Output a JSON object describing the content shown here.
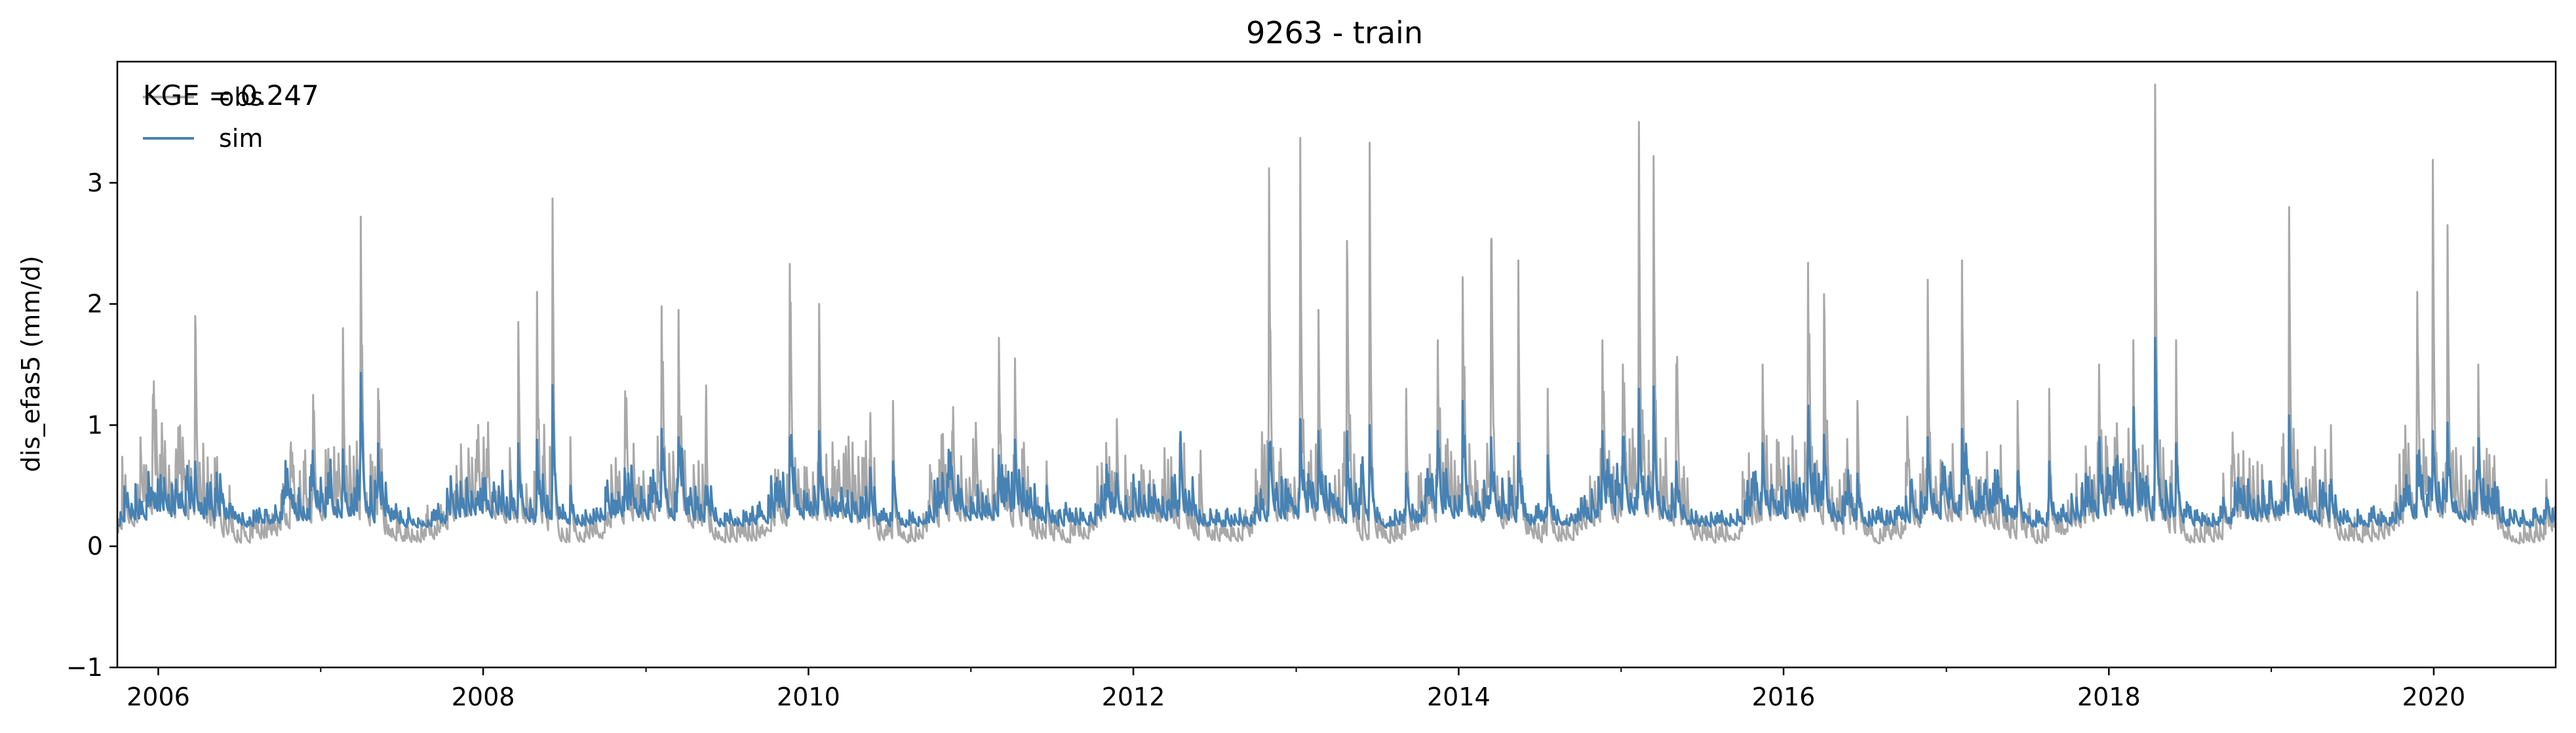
{
  "chart_data": {
    "type": "line",
    "title": "9263 - train",
    "xlabel": "",
    "ylabel": "dis_efas5 (mm/d)",
    "xlim": [
      "2005-10-01",
      "2020-10-01"
    ],
    "ylim": [
      -1,
      4
    ],
    "yticks": [
      -1,
      0,
      1,
      2,
      3
    ],
    "xticks": [
      "2006",
      "2008",
      "2010",
      "2012",
      "2014",
      "2016",
      "2018",
      "2020"
    ],
    "grid": false,
    "legend_placement": "upper-left",
    "annotation": "KGE = 0.247",
    "series": [
      {
        "name": "obs",
        "color": "#a9a9a9",
        "baseline": 0.13,
        "peaks": [
          [
            "2005-10-20",
            0.5
          ],
          [
            "2005-12-20",
            1.25
          ],
          [
            "2006-02-10",
            0.8
          ],
          [
            "2006-03-25",
            1.9
          ],
          [
            "2006-06-10",
            0.5
          ],
          [
            "2006-10-25",
            0.78
          ],
          [
            "2006-12-15",
            1.25
          ],
          [
            "2007-02-20",
            1.8
          ],
          [
            "2007-04-01",
            2.72
          ],
          [
            "2007-05-10",
            1.3
          ],
          [
            "2007-10-20",
            0.55
          ],
          [
            "2007-12-20",
            0.6
          ],
          [
            "2008-03-20",
            1.85
          ],
          [
            "2008-05-01",
            2.1
          ],
          [
            "2008-06-05",
            2.87
          ],
          [
            "2008-07-15",
            0.9
          ],
          [
            "2008-11-15",
            1.28
          ],
          [
            "2009-02-05",
            1.98
          ],
          [
            "2009-03-15",
            1.95
          ],
          [
            "2009-05-15",
            0.9
          ],
          [
            "2009-11-20",
            2.33
          ],
          [
            "2010-01-25",
            2.0
          ],
          [
            "2010-05-20",
            1.1
          ],
          [
            "2010-07-10",
            1.2
          ],
          [
            "2010-11-20",
            0.95
          ],
          [
            "2011-03-05",
            1.72
          ],
          [
            "2011-04-10",
            1.55
          ],
          [
            "2011-06-20",
            0.7
          ],
          [
            "2011-11-25",
            1.05
          ],
          [
            "2012-04-15",
            0.85
          ],
          [
            "2012-11-01",
            3.12
          ],
          [
            "2013-01-10",
            3.37
          ],
          [
            "2013-02-20",
            1.95
          ],
          [
            "2013-04-25",
            2.52
          ],
          [
            "2013-06-15",
            3.33
          ],
          [
            "2013-09-05",
            1.3
          ],
          [
            "2013-11-15",
            1.7
          ],
          [
            "2014-01-10",
            2.22
          ],
          [
            "2014-03-15",
            2.52
          ],
          [
            "2014-05-15",
            2.36
          ],
          [
            "2014-07-20",
            1.3
          ],
          [
            "2014-11-20",
            1.7
          ],
          [
            "2015-01-05",
            1.5
          ],
          [
            "2015-02-10",
            3.5
          ],
          [
            "2015-03-15",
            3.22
          ],
          [
            "2015-05-05",
            1.5
          ],
          [
            "2015-11-15",
            1.5
          ],
          [
            "2016-02-25",
            2.34
          ],
          [
            "2016-04-01",
            2.08
          ],
          [
            "2016-06-15",
            1.2
          ],
          [
            "2016-11-20",
            2.2
          ],
          [
            "2017-02-05",
            2.36
          ],
          [
            "2017-06-10",
            1.2
          ],
          [
            "2017-08-20",
            1.3
          ],
          [
            "2017-12-10",
            1.5
          ],
          [
            "2018-02-25",
            1.7
          ],
          [
            "2018-04-15",
            3.81
          ],
          [
            "2018-06-01",
            1.7
          ],
          [
            "2018-09-15",
            0.6
          ],
          [
            "2019-02-10",
            2.8
          ],
          [
            "2019-05-15",
            1.0
          ],
          [
            "2019-11-25",
            2.1
          ],
          [
            "2019-12-30",
            3.19
          ],
          [
            "2020-02-01",
            2.65
          ],
          [
            "2020-04-10",
            1.5
          ],
          [
            "2020-09-10",
            0.55
          ]
        ]
      },
      {
        "name": "sim",
        "color": "#4682b4",
        "baseline": 0.18,
        "peaks": [
          [
            "2005-10-20",
            0.42
          ],
          [
            "2005-12-20",
            0.45
          ],
          [
            "2006-02-10",
            0.55
          ],
          [
            "2006-03-25",
            0.7
          ],
          [
            "2006-06-10",
            0.35
          ],
          [
            "2006-10-25",
            0.45
          ],
          [
            "2006-12-15",
            0.5
          ],
          [
            "2007-02-20",
            0.8
          ],
          [
            "2007-04-01",
            1.43
          ],
          [
            "2007-05-10",
            0.85
          ],
          [
            "2007-10-20",
            0.4
          ],
          [
            "2007-12-20",
            0.45
          ],
          [
            "2008-03-20",
            0.85
          ],
          [
            "2008-05-01",
            0.88
          ],
          [
            "2008-06-05",
            1.33
          ],
          [
            "2008-07-15",
            0.5
          ],
          [
            "2008-11-15",
            0.6
          ],
          [
            "2009-02-05",
            0.97
          ],
          [
            "2009-03-15",
            0.9
          ],
          [
            "2009-05-15",
            0.5
          ],
          [
            "2009-11-20",
            0.9
          ],
          [
            "2010-01-25",
            0.95
          ],
          [
            "2010-05-20",
            0.65
          ],
          [
            "2010-07-10",
            0.7
          ],
          [
            "2010-11-20",
            0.6
          ],
          [
            "2011-03-05",
            0.75
          ],
          [
            "2011-04-10",
            0.88
          ],
          [
            "2011-06-20",
            0.5
          ],
          [
            "2011-11-25",
            0.6
          ],
          [
            "2012-04-15",
            0.83
          ],
          [
            "2012-11-01",
            0.85
          ],
          [
            "2013-01-10",
            1.05
          ],
          [
            "2013-02-20",
            0.95
          ],
          [
            "2013-04-25",
            0.95
          ],
          [
            "2013-06-15",
            1.0
          ],
          [
            "2013-09-05",
            0.6
          ],
          [
            "2013-11-15",
            0.95
          ],
          [
            "2014-01-10",
            1.2
          ],
          [
            "2014-03-15",
            0.9
          ],
          [
            "2014-05-15",
            0.85
          ],
          [
            "2014-07-20",
            0.75
          ],
          [
            "2014-11-20",
            0.95
          ],
          [
            "2015-01-05",
            0.9
          ],
          [
            "2015-02-10",
            1.3
          ],
          [
            "2015-03-15",
            1.32
          ],
          [
            "2015-05-05",
            0.7
          ],
          [
            "2015-11-15",
            0.85
          ],
          [
            "2016-02-25",
            0.97
          ],
          [
            "2016-04-01",
            0.92
          ],
          [
            "2016-06-15",
            0.6
          ],
          [
            "2016-11-20",
            0.9
          ],
          [
            "2017-02-05",
            0.97
          ],
          [
            "2017-06-10",
            0.6
          ],
          [
            "2017-08-20",
            0.7
          ],
          [
            "2017-12-10",
            0.8
          ],
          [
            "2018-02-25",
            0.95
          ],
          [
            "2018-04-15",
            1.72
          ],
          [
            "2018-06-01",
            0.85
          ],
          [
            "2018-09-15",
            0.4
          ],
          [
            "2019-02-10",
            1.08
          ],
          [
            "2019-05-15",
            0.55
          ],
          [
            "2019-11-25",
            0.75
          ],
          [
            "2019-12-30",
            0.95
          ],
          [
            "2020-02-01",
            1.02
          ],
          [
            "2020-04-10",
            0.75
          ],
          [
            "2020-09-10",
            0.4
          ]
        ]
      }
    ]
  }
}
